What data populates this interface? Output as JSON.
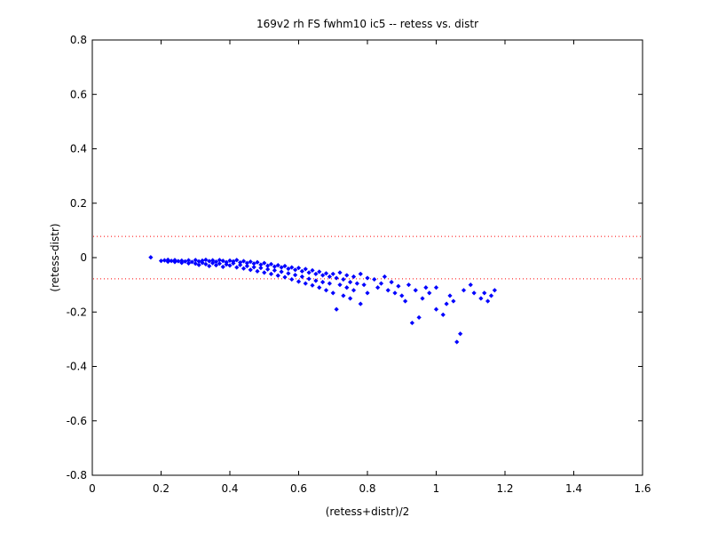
{
  "chart_data": {
    "type": "scatter",
    "title": "169v2 rh FS fwhm10 ic5 -- retess vs. distr",
    "xlabel": "(retess+distr)/2",
    "ylabel": "(retess-distr)",
    "xlim": [
      0,
      1.6
    ],
    "ylim": [
      -0.8,
      0.8
    ],
    "xticks": [
      0,
      0.2,
      0.4,
      0.6,
      0.8,
      1,
      1.2,
      1.4,
      1.6
    ],
    "xtick_labels": [
      "0",
      "0.2",
      "0.4",
      "0.6",
      "0.8",
      "1",
      "1.2",
      "1.4",
      "1.6"
    ],
    "yticks": [
      -0.8,
      -0.6,
      -0.4,
      -0.2,
      0,
      0.2,
      0.4,
      0.6,
      0.8
    ],
    "ytick_labels": [
      "-0.8",
      "-0.6",
      "-0.4",
      "-0.2",
      "0",
      "0.2",
      "0.4",
      "0.6",
      "0.8"
    ],
    "grid": false,
    "marker": "diamond",
    "marker_color": "#0000ff",
    "reference_lines": [
      {
        "y": 0.078,
        "style": "dotted",
        "color": "#ff0000"
      },
      {
        "y": -0.078,
        "style": "dotted",
        "color": "#ff0000"
      }
    ],
    "points": [
      [
        0.17,
        0.001
      ],
      [
        0.2,
        -0.012
      ],
      [
        0.21,
        -0.01
      ],
      [
        0.22,
        -0.008
      ],
      [
        0.22,
        -0.015
      ],
      [
        0.23,
        -0.012
      ],
      [
        0.24,
        -0.009
      ],
      [
        0.24,
        -0.016
      ],
      [
        0.25,
        -0.013
      ],
      [
        0.26,
        -0.011
      ],
      [
        0.26,
        -0.019
      ],
      [
        0.27,
        -0.014
      ],
      [
        0.28,
        -0.01
      ],
      [
        0.28,
        -0.021
      ],
      [
        0.29,
        -0.016
      ],
      [
        0.3,
        -0.009
      ],
      [
        0.3,
        -0.022
      ],
      [
        0.31,
        -0.014
      ],
      [
        0.31,
        -0.027
      ],
      [
        0.32,
        -0.011
      ],
      [
        0.32,
        -0.019
      ],
      [
        0.33,
        -0.008
      ],
      [
        0.33,
        -0.024
      ],
      [
        0.34,
        -0.013
      ],
      [
        0.34,
        -0.031
      ],
      [
        0.35,
        -0.01
      ],
      [
        0.35,
        -0.02
      ],
      [
        0.36,
        -0.015
      ],
      [
        0.36,
        -0.028
      ],
      [
        0.37,
        -0.009
      ],
      [
        0.37,
        -0.022
      ],
      [
        0.38,
        -0.012
      ],
      [
        0.38,
        -0.034
      ],
      [
        0.39,
        -0.017
      ],
      [
        0.39,
        -0.025
      ],
      [
        0.4,
        -0.011
      ],
      [
        0.4,
        -0.029
      ],
      [
        0.41,
        -0.014
      ],
      [
        0.41,
        -0.021
      ],
      [
        0.42,
        -0.009
      ],
      [
        0.42,
        -0.036
      ],
      [
        0.43,
        -0.018
      ],
      [
        0.43,
        -0.027
      ],
      [
        0.44,
        -0.013
      ],
      [
        0.44,
        -0.04
      ],
      [
        0.45,
        -0.02
      ],
      [
        0.45,
        -0.031
      ],
      [
        0.46,
        -0.015
      ],
      [
        0.46,
        -0.045
      ],
      [
        0.47,
        -0.022
      ],
      [
        0.47,
        -0.035
      ],
      [
        0.48,
        -0.017
      ],
      [
        0.48,
        -0.05
      ],
      [
        0.49,
        -0.026
      ],
      [
        0.49,
        -0.038
      ],
      [
        0.5,
        -0.02
      ],
      [
        0.5,
        -0.055
      ],
      [
        0.51,
        -0.03
      ],
      [
        0.51,
        -0.043
      ],
      [
        0.52,
        -0.024
      ],
      [
        0.52,
        -0.06
      ],
      [
        0.53,
        -0.033
      ],
      [
        0.53,
        -0.047
      ],
      [
        0.54,
        -0.028
      ],
      [
        0.54,
        -0.066
      ],
      [
        0.55,
        -0.036
      ],
      [
        0.55,
        -0.052
      ],
      [
        0.56,
        -0.031
      ],
      [
        0.56,
        -0.072
      ],
      [
        0.57,
        -0.041
      ],
      [
        0.57,
        -0.058
      ],
      [
        0.58,
        -0.036
      ],
      [
        0.58,
        -0.08
      ],
      [
        0.59,
        -0.045
      ],
      [
        0.59,
        -0.064
      ],
      [
        0.6,
        -0.038
      ],
      [
        0.6,
        -0.088
      ],
      [
        0.61,
        -0.05
      ],
      [
        0.61,
        -0.07
      ],
      [
        0.62,
        -0.042
      ],
      [
        0.62,
        -0.095
      ],
      [
        0.63,
        -0.055
      ],
      [
        0.63,
        -0.078
      ],
      [
        0.64,
        -0.047
      ],
      [
        0.64,
        -0.102
      ],
      [
        0.65,
        -0.06
      ],
      [
        0.65,
        -0.085
      ],
      [
        0.66,
        -0.052
      ],
      [
        0.66,
        -0.11
      ],
      [
        0.67,
        -0.065
      ],
      [
        0.67,
        -0.09
      ],
      [
        0.68,
        -0.058
      ],
      [
        0.68,
        -0.12
      ],
      [
        0.69,
        -0.07
      ],
      [
        0.69,
        -0.095
      ],
      [
        0.7,
        -0.06
      ],
      [
        0.7,
        -0.13
      ],
      [
        0.71,
        -0.075
      ],
      [
        0.71,
        -0.19
      ],
      [
        0.72,
        -0.1
      ],
      [
        0.72,
        -0.055
      ],
      [
        0.73,
        -0.08
      ],
      [
        0.73,
        -0.14
      ],
      [
        0.74,
        -0.065
      ],
      [
        0.74,
        -0.11
      ],
      [
        0.75,
        -0.09
      ],
      [
        0.75,
        -0.15
      ],
      [
        0.76,
        -0.07
      ],
      [
        0.76,
        -0.12
      ],
      [
        0.77,
        -0.095
      ],
      [
        0.78,
        -0.17
      ],
      [
        0.78,
        -0.06
      ],
      [
        0.79,
        -0.1
      ],
      [
        0.8,
        -0.13
      ],
      [
        0.8,
        -0.075
      ],
      [
        0.82,
        -0.08
      ],
      [
        0.83,
        -0.11
      ],
      [
        0.84,
        -0.095
      ],
      [
        0.85,
        -0.07
      ],
      [
        0.86,
        -0.12
      ],
      [
        0.87,
        -0.09
      ],
      [
        0.88,
        -0.13
      ],
      [
        0.89,
        -0.105
      ],
      [
        0.9,
        -0.14
      ],
      [
        0.91,
        -0.16
      ],
      [
        0.92,
        -0.1
      ],
      [
        0.93,
        -0.24
      ],
      [
        0.94,
        -0.12
      ],
      [
        0.95,
        -0.22
      ],
      [
        0.96,
        -0.15
      ],
      [
        0.97,
        -0.11
      ],
      [
        0.98,
        -0.13
      ],
      [
        1,
        -0.19
      ],
      [
        1,
        -0.11
      ],
      [
        1.02,
        -0.21
      ],
      [
        1.03,
        -0.17
      ],
      [
        1.04,
        -0.14
      ],
      [
        1.05,
        -0.16
      ],
      [
        1.06,
        -0.31
      ],
      [
        1.07,
        -0.28
      ],
      [
        1.08,
        -0.12
      ],
      [
        1.1,
        -0.1
      ],
      [
        1.11,
        -0.13
      ],
      [
        1.13,
        -0.15
      ],
      [
        1.14,
        -0.13
      ],
      [
        1.15,
        -0.16
      ],
      [
        1.16,
        -0.14
      ],
      [
        1.17,
        -0.12
      ]
    ]
  }
}
